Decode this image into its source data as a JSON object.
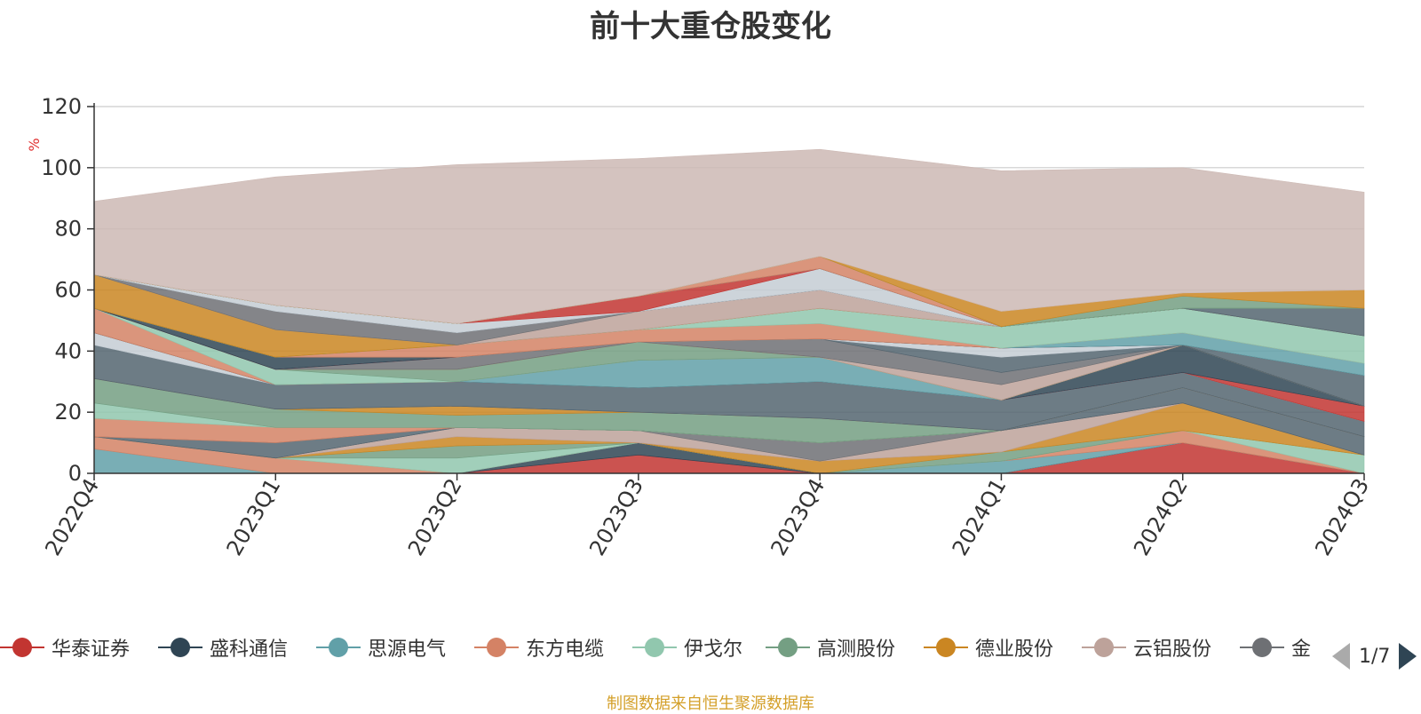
{
  "chart_data": {
    "type": "area",
    "title": "前十大重仓股变化",
    "ylabel": "%",
    "ylim": [
      0,
      120
    ],
    "yticks": [
      0,
      20,
      40,
      60,
      80,
      100,
      120
    ],
    "grid": true,
    "categories": [
      "2022Q4",
      "2023Q1",
      "2023Q2",
      "2023Q3",
      "2023Q4",
      "2024Q1",
      "2024Q2",
      "2024Q3"
    ],
    "series": [
      {
        "name": "华泰证券",
        "color": "#c23531",
        "values": [
          0,
          0,
          0,
          6,
          0,
          0,
          10,
          0
        ]
      },
      {
        "name": "盛科通信",
        "color": "#2f4554",
        "values": [
          0,
          0,
          0,
          4,
          0,
          0,
          0,
          0
        ]
      },
      {
        "name": "思源电气",
        "color": "#61a0a8",
        "values": [
          8,
          0,
          0,
          0,
          0,
          4,
          0,
          0
        ]
      },
      {
        "name": "东方电缆",
        "color": "#d48265",
        "values": [
          4,
          5,
          0,
          0,
          0,
          0,
          4,
          0
        ]
      },
      {
        "name": "伊戈尔",
        "color": "#91c7ae",
        "values": [
          0,
          0,
          5,
          0,
          0,
          0,
          0,
          6
        ]
      },
      {
        "name": "高测股份",
        "color": "#749f83",
        "values": [
          0,
          0,
          4,
          0,
          0,
          3,
          0,
          0
        ]
      },
      {
        "name": "德业股份",
        "color": "#ca8622",
        "values": [
          0,
          0,
          3,
          0,
          4,
          0,
          9,
          0
        ]
      },
      {
        "name": "云铝股份",
        "color": "#bda29a",
        "values": [
          0,
          0,
          3,
          4,
          0,
          7,
          0,
          0
        ]
      },
      {
        "name": "金",
        "color": "#6e7074",
        "values": [
          0,
          0,
          0,
          0,
          6,
          0,
          0,
          0
        ]
      },
      {
        "name": "",
        "color": "#546570",
        "values": [
          0,
          5,
          0,
          0,
          0,
          0,
          5,
          6
        ]
      },
      {
        "name": "",
        "color": "#c4ccd3",
        "values": [
          0,
          0,
          0,
          0,
          0,
          0,
          0,
          0
        ]
      },
      {
        "name": "",
        "color": "#c23531",
        "values": [
          0,
          0,
          0,
          0,
          0,
          0,
          0,
          0
        ]
      },
      {
        "name": "",
        "color": "#2f4554",
        "values": [
          0,
          0,
          0,
          0,
          0,
          0,
          0,
          0
        ]
      },
      {
        "name": "",
        "color": "#61a0a8",
        "values": [
          0,
          0,
          0,
          0,
          0,
          0,
          0,
          0
        ]
      },
      {
        "name": "",
        "color": "#d48265",
        "values": [
          6,
          5,
          0,
          0,
          0,
          0,
          0,
          0
        ]
      },
      {
        "name": "",
        "color": "#91c7ae",
        "values": [
          5,
          0,
          0,
          0,
          0,
          0,
          0,
          0
        ]
      },
      {
        "name": "",
        "color": "#749f83",
        "values": [
          8,
          6,
          4,
          6,
          8,
          0,
          0,
          0
        ]
      },
      {
        "name": "",
        "color": "#ca8622",
        "values": [
          0,
          0,
          3,
          0,
          0,
          0,
          0,
          0
        ]
      },
      {
        "name": "",
        "color": "#bda29a",
        "values": [
          0,
          0,
          0,
          0,
          0,
          0,
          0,
          0
        ]
      },
      {
        "name": "",
        "color": "#6e7074",
        "values": [
          0,
          0,
          0,
          0,
          0,
          0,
          0,
          0
        ]
      },
      {
        "name": "",
        "color": "#546570",
        "values": [
          11,
          8,
          8,
          8,
          12,
          10,
          5,
          5
        ]
      },
      {
        "name": "",
        "color": "#c4ccd3",
        "values": [
          4,
          0,
          0,
          0,
          0,
          0,
          0,
          0
        ]
      },
      {
        "name": "",
        "color": "#c23531",
        "values": [
          0,
          0,
          0,
          0,
          0,
          0,
          0,
          5
        ]
      },
      {
        "name": "",
        "color": "#2f4554",
        "values": [
          0,
          0,
          0,
          0,
          0,
          0,
          9,
          0
        ]
      },
      {
        "name": "",
        "color": "#61a0a8",
        "values": [
          0,
          0,
          0,
          9,
          8,
          0,
          0,
          0
        ]
      },
      {
        "name": "",
        "color": "#d48265",
        "values": [
          8,
          0,
          0,
          0,
          0,
          0,
          0,
          0
        ]
      },
      {
        "name": "",
        "color": "#91c7ae",
        "values": [
          0,
          5,
          0,
          0,
          0,
          0,
          0,
          0
        ]
      },
      {
        "name": "",
        "color": "#749f83",
        "values": [
          0,
          0,
          4,
          6,
          0,
          0,
          0,
          0
        ]
      },
      {
        "name": "",
        "color": "#ca8622",
        "values": [
          0,
          0,
          0,
          0,
          0,
          0,
          0,
          0
        ]
      },
      {
        "name": "",
        "color": "#bda29a",
        "values": [
          0,
          0,
          0,
          0,
          0,
          5,
          0,
          0
        ]
      },
      {
        "name": "",
        "color": "#6e7074",
        "values": [
          0,
          0,
          4,
          0,
          6,
          4,
          0,
          0
        ]
      },
      {
        "name": "",
        "color": "#546570",
        "values": [
          0,
          0,
          0,
          0,
          0,
          5,
          0,
          10
        ]
      },
      {
        "name": "",
        "color": "#c4ccd3",
        "values": [
          0,
          0,
          0,
          0,
          0,
          3,
          0,
          0
        ]
      },
      {
        "name": "",
        "color": "#c23531",
        "values": [
          0,
          0,
          0,
          0,
          0,
          0,
          0,
          0
        ]
      },
      {
        "name": "",
        "color": "#2f4554",
        "values": [
          0,
          4,
          0,
          0,
          0,
          0,
          0,
          0
        ]
      },
      {
        "name": "",
        "color": "#61a0a8",
        "values": [
          0,
          0,
          0,
          0,
          0,
          0,
          4,
          4
        ]
      },
      {
        "name": "",
        "color": "#d48265",
        "values": [
          0,
          0,
          4,
          4,
          5,
          0,
          0,
          0
        ]
      },
      {
        "name": "",
        "color": "#91c7ae",
        "values": [
          0,
          0,
          0,
          0,
          5,
          7,
          8,
          9
        ]
      },
      {
        "name": "",
        "color": "#749f83",
        "values": [
          0,
          0,
          0,
          0,
          0,
          0,
          0,
          0
        ]
      },
      {
        "name": "",
        "color": "#ca8622",
        "values": [
          11,
          9,
          0,
          0,
          0,
          0,
          0,
          0
        ]
      },
      {
        "name": "",
        "color": "#bda29a",
        "values": [
          0,
          0,
          0,
          6,
          6,
          0,
          0,
          0
        ]
      },
      {
        "name": "",
        "color": "#6e7074",
        "values": [
          0,
          6,
          4,
          0,
          0,
          0,
          0,
          0
        ]
      },
      {
        "name": "",
        "color": "#546570",
        "values": [
          0,
          0,
          0,
          0,
          0,
          0,
          0,
          9
        ]
      },
      {
        "name": "",
        "color": "#c4ccd3",
        "values": [
          0,
          2,
          3,
          0,
          7,
          0,
          0,
          0
        ]
      },
      {
        "name": "",
        "color": "#c23531",
        "values": [
          0,
          0,
          0,
          5,
          0,
          0,
          0,
          0
        ]
      },
      {
        "name": "",
        "color": "#2f4554",
        "values": [
          0,
          0,
          0,
          0,
          0,
          0,
          0,
          0
        ]
      },
      {
        "name": "",
        "color": "#61a0a8",
        "values": [
          0,
          0,
          0,
          0,
          0,
          0,
          0,
          0
        ]
      },
      {
        "name": "",
        "color": "#d48265",
        "values": [
          0,
          0,
          0,
          0,
          4,
          0,
          0,
          0
        ]
      },
      {
        "name": "",
        "color": "#91c7ae",
        "values": [
          0,
          0,
          0,
          0,
          0,
          0,
          0,
          0
        ]
      },
      {
        "name": "",
        "color": "#749f83",
        "values": [
          0,
          0,
          0,
          0,
          0,
          0,
          4,
          0
        ]
      },
      {
        "name": "",
        "color": "#ca8622",
        "values": [
          0,
          0,
          0,
          0,
          0,
          5,
          1,
          6
        ]
      },
      {
        "name": "",
        "color": "#cdb9b4",
        "values": [
          24,
          42,
          52,
          45,
          35,
          46,
          41,
          32
        ]
      }
    ]
  },
  "legend": {
    "items": [
      {
        "label": "华泰证券",
        "color": "#c23531"
      },
      {
        "label": "盛科通信",
        "color": "#2f4554"
      },
      {
        "label": "思源电气",
        "color": "#61a0a8"
      },
      {
        "label": "东方电缆",
        "color": "#d48265"
      },
      {
        "label": "伊戈尔",
        "color": "#91c7ae"
      },
      {
        "label": "高测股份",
        "color": "#749f83"
      },
      {
        "label": "德业股份",
        "color": "#ca8622"
      },
      {
        "label": "云铝股份",
        "color": "#bda29a"
      },
      {
        "label": "金",
        "color": "#6e7074"
      }
    ],
    "page_text": "1/7"
  },
  "footer": "制图数据来自恒生聚源数据库"
}
